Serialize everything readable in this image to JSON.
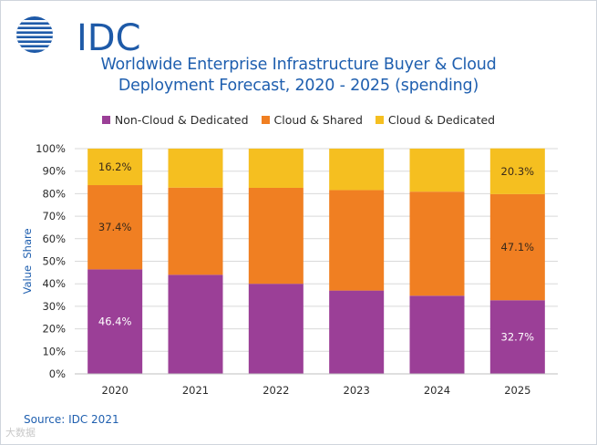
{
  "logo": {
    "text": "IDC"
  },
  "title_lines": [
    "Worldwide Enterprise Infrastructure Buyer & Cloud",
    "Deployment Forecast, 2020 - 2025 (spending)"
  ],
  "source": "Source: IDC 2021",
  "watermark": "大数据",
  "colors": {
    "title": "#1f5faf",
    "grid": "#d9d9d9",
    "axis_text": "#2b2b2b"
  },
  "chart_data": {
    "type": "bar",
    "stacked": true,
    "categories": [
      "2020",
      "2021",
      "2022",
      "2023",
      "2024",
      "2025"
    ],
    "series": [
      {
        "name": "Non-Cloud & Dedicated",
        "color": "#9b3f97",
        "values": [
          46.4,
          44.0,
          40.0,
          37.0,
          34.7,
          32.7
        ]
      },
      {
        "name": "Cloud & Shared",
        "color": "#f07f22",
        "values": [
          37.4,
          38.7,
          42.6,
          44.6,
          46.2,
          47.1
        ]
      },
      {
        "name": "Cloud & Dedicated",
        "color": "#f5bf20",
        "values": [
          16.2,
          17.3,
          17.4,
          18.4,
          19.1,
          20.3
        ]
      }
    ],
    "data_labels": [
      {
        "series": 0,
        "category": 0,
        "text": "46.4%"
      },
      {
        "series": 1,
        "category": 0,
        "text": "37.4%"
      },
      {
        "series": 2,
        "category": 0,
        "text": "16.2%"
      },
      {
        "series": 0,
        "category": 5,
        "text": "32.7%"
      },
      {
        "series": 1,
        "category": 5,
        "text": "47.1%"
      },
      {
        "series": 2,
        "category": 5,
        "text": "20.3%"
      }
    ],
    "ylabel": "Value  Share",
    "ylim": [
      0,
      100
    ],
    "yticks": [
      "0%",
      "10%",
      "20%",
      "30%",
      "40%",
      "50%",
      "60%",
      "70%",
      "80%",
      "90%",
      "100%"
    ],
    "grid": true,
    "legend_position": "top-center"
  }
}
